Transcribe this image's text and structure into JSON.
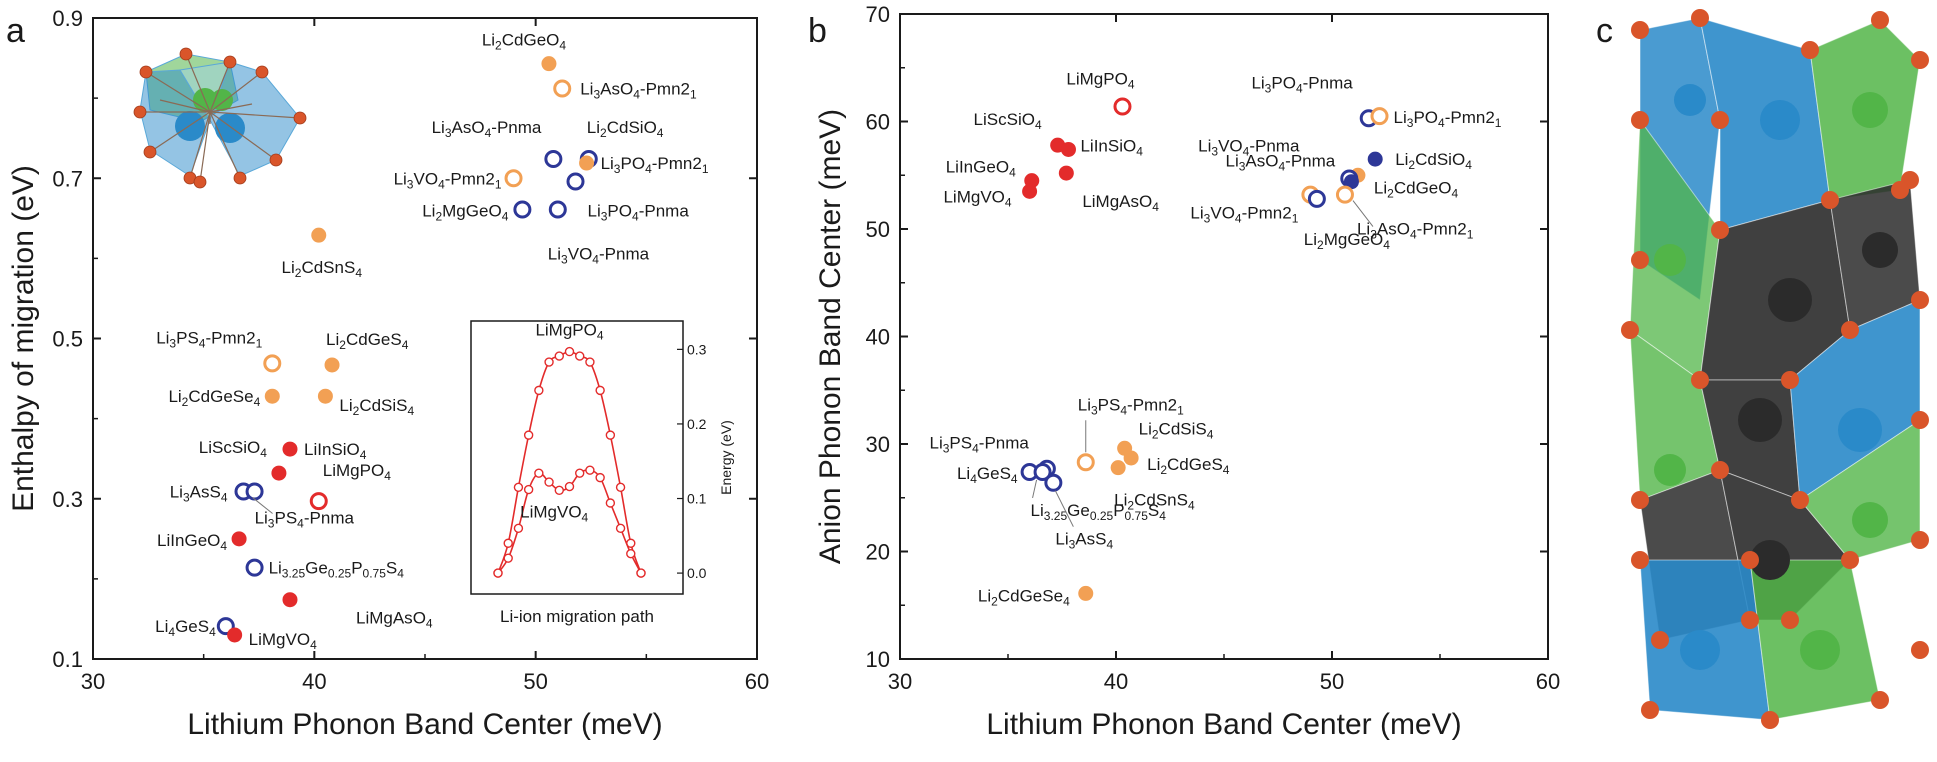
{
  "colors": {
    "orange": "#f2a054",
    "red": "#e32b2b",
    "blue": "#2d3797",
    "axis": "#1a1a1a",
    "leader": "#777777",
    "crystal_blue": "#2a8ac9",
    "crystal_green": "#52b548",
    "crystal_dark": "#2b2b2b",
    "crystal_atom": "#d9552a"
  },
  "panels": {
    "a": {
      "letter": "a"
    },
    "b": {
      "letter": "b"
    },
    "c": {
      "letter": "c"
    }
  },
  "chart_data": [
    {
      "id": "a",
      "type": "scatter",
      "xlabel": "Lithium Phonon Band Center (meV)",
      "ylabel": "Enthalpy of migration (eV)",
      "xlim": [
        30,
        60
      ],
      "ylim": [
        0.1,
        0.9
      ],
      "xticks": [
        30,
        40,
        50,
        60
      ],
      "yticks": [
        0.1,
        0.3,
        0.5,
        0.7,
        0.9
      ],
      "xtick_labels": [
        "30",
        "40",
        "50",
        "60"
      ],
      "ytick_labels": [
        "0.1",
        "0.3",
        "0.5",
        "0.7",
        "0.9"
      ],
      "points": [
        {
          "x": 50.6,
          "y": 0.843,
          "color": "orange",
          "filled": true,
          "label": "Li2CdGeO4"
        },
        {
          "x": 51.2,
          "y": 0.812,
          "color": "orange",
          "filled": false,
          "label": "Li3AsO4-Pmn21"
        },
        {
          "x": 50.8,
          "y": 0.724,
          "color": "blue",
          "filled": false,
          "label": "Li3AsO4-Pnma"
        },
        {
          "x": 52.4,
          "y": 0.724,
          "color": "blue",
          "filled": false,
          "label": "Li2CdSiO4"
        },
        {
          "x": 52.3,
          "y": 0.719,
          "color": "orange",
          "filled": true,
          "label": "Li3PO4-Pmn21"
        },
        {
          "x": 49.0,
          "y": 0.7,
          "color": "orange",
          "filled": false,
          "label": "Li3VO4-Pmn21"
        },
        {
          "x": 51.8,
          "y": 0.696,
          "color": "blue",
          "filled": false,
          "label": "Li3PO4-Pnma"
        },
        {
          "x": 49.4,
          "y": 0.661,
          "color": "blue",
          "filled": false,
          "label": "Li2MgGeO4"
        },
        {
          "x": 51.0,
          "y": 0.661,
          "color": "blue",
          "filled": false,
          "label": "Li3VO4-Pnma"
        },
        {
          "x": 40.2,
          "y": 0.629,
          "color": "orange",
          "filled": true,
          "label": "Li2CdSnS4"
        },
        {
          "x": 38.1,
          "y": 0.469,
          "color": "orange",
          "filled": false,
          "label": "Li3PS4-Pmn21"
        },
        {
          "x": 40.8,
          "y": 0.467,
          "color": "orange",
          "filled": true,
          "label": "Li2CdGeS4"
        },
        {
          "x": 38.1,
          "y": 0.428,
          "color": "orange",
          "filled": true,
          "label": "Li2CdGeSe4"
        },
        {
          "x": 40.5,
          "y": 0.428,
          "color": "orange",
          "filled": true,
          "label": "Li2CdSiS4"
        },
        {
          "x": 38.9,
          "y": 0.362,
          "color": "red",
          "filled": true,
          "label": "LiInSiO4"
        },
        {
          "x": 38.4,
          "y": 0.332,
          "color": "red",
          "filled": true,
          "label": "LiScSiO4"
        },
        {
          "x": 36.8,
          "y": 0.309,
          "color": "blue",
          "filled": false,
          "label": "Li3AsS4"
        },
        {
          "x": 37.3,
          "y": 0.309,
          "color": "blue",
          "filled": false,
          "label": "Li3PS4-Pnma"
        },
        {
          "x": 40.2,
          "y": 0.297,
          "color": "red",
          "filled": false,
          "label": "LiMgPO4"
        },
        {
          "x": 36.6,
          "y": 0.25,
          "color": "red",
          "filled": true,
          "label": "LiInGeO4"
        },
        {
          "x": 37.3,
          "y": 0.214,
          "color": "blue",
          "filled": false,
          "label": "Li3.25Ge0.25P0.75S4"
        },
        {
          "x": 38.9,
          "y": 0.174,
          "color": "red",
          "filled": true,
          "label": "LiMgAsO4"
        },
        {
          "x": 36.0,
          "y": 0.141,
          "color": "blue",
          "filled": false,
          "label": "Li4GeS4"
        },
        {
          "x": 36.4,
          "y": 0.13,
          "color": "red",
          "filled": true,
          "label": "LiMgVO4"
        }
      ],
      "inset": {
        "type": "line",
        "xlabel": "Li-ion migration path",
        "ylabel": "Energy (eV)",
        "ylim": [
          -0.02,
          0.33
        ],
        "yticks": [
          0.0,
          0.1,
          0.2,
          0.3
        ],
        "ytick_labels": [
          "0.0",
          "0.1",
          "0.2",
          "0.3"
        ],
        "x": [
          0,
          1,
          2,
          3,
          4,
          5,
          6,
          7,
          8,
          9,
          10,
          11,
          12,
          13,
          14
        ],
        "series": [
          {
            "name": "LiMgPO4",
            "color": "red",
            "values": [
              0.0,
              0.04,
              0.115,
              0.185,
              0.245,
              0.283,
              0.291,
              0.297,
              0.291,
              0.283,
              0.245,
              0.185,
              0.115,
              0.04,
              0.0
            ]
          },
          {
            "name": "LiMgVO4",
            "color": "red",
            "values": [
              0.0,
              0.02,
              0.06,
              0.112,
              0.134,
              0.122,
              0.111,
              0.116,
              0.134,
              0.138,
              0.128,
              0.094,
              0.06,
              0.026,
              0.0
            ]
          }
        ]
      }
    },
    {
      "id": "b",
      "type": "scatter",
      "xlabel": "Lithium Phonon Band Center (meV)",
      "ylabel": "Anion Phonon Band Center (meV)",
      "xlim": [
        30,
        60
      ],
      "ylim": [
        10,
        70
      ],
      "xticks": [
        30,
        40,
        50,
        60
      ],
      "yticks": [
        10,
        20,
        30,
        40,
        50,
        60,
        70
      ],
      "xtick_labels": [
        "30",
        "40",
        "50",
        "60"
      ],
      "ytick_labels": [
        "10",
        "20",
        "30",
        "40",
        "50",
        "60",
        "70"
      ],
      "points": [
        {
          "x": 40.3,
          "y": 61.4,
          "color": "red",
          "filled": false,
          "label": "LiMgPO4"
        },
        {
          "x": 51.7,
          "y": 60.3,
          "color": "blue",
          "filled": false,
          "label": "Li3PO4-Pnma"
        },
        {
          "x": 52.2,
          "y": 60.5,
          "color": "orange",
          "filled": false,
          "label": "Li3PO4-Pmn21"
        },
        {
          "x": 37.3,
          "y": 57.8,
          "color": "red",
          "filled": true,
          "label": "LiScSiO4"
        },
        {
          "x": 37.8,
          "y": 57.4,
          "color": "red",
          "filled": true,
          "label": "LiInSiO4"
        },
        {
          "x": 52.0,
          "y": 56.5,
          "color": "blue",
          "filled": true,
          "label": "Li2CdSiO4"
        },
        {
          "x": 37.7,
          "y": 55.2,
          "color": "red",
          "filled": true,
          "label": "LiMgAsO4"
        },
        {
          "x": 36.1,
          "y": 54.5,
          "color": "red",
          "filled": true,
          "label": "LiInGeO4"
        },
        {
          "x": 51.2,
          "y": 55.0,
          "color": "orange",
          "filled": true,
          "label": "Li2CdGeO4"
        },
        {
          "x": 50.8,
          "y": 54.7,
          "color": "blue",
          "filled": false,
          "label": "Li3AsO4-Pnma"
        },
        {
          "x": 50.9,
          "y": 54.4,
          "color": "blue",
          "filled": true,
          "label": "Li3VO4-Pnma"
        },
        {
          "x": 36.0,
          "y": 53.5,
          "color": "red",
          "filled": true,
          "label": "LiMgVO4"
        },
        {
          "x": 49.0,
          "y": 53.2,
          "color": "orange",
          "filled": false,
          "label": "Li3VO4-Pmn21"
        },
        {
          "x": 49.3,
          "y": 52.8,
          "color": "blue",
          "filled": false,
          "label": "Li2MgGeO4"
        },
        {
          "x": 50.6,
          "y": 53.2,
          "color": "orange",
          "filled": false,
          "label": "Li3AsO4-Pmn21"
        },
        {
          "x": 40.4,
          "y": 29.6,
          "color": "orange",
          "filled": true,
          "label": "Li2CdSiS4"
        },
        {
          "x": 40.7,
          "y": 28.7,
          "color": "orange",
          "filled": true,
          "label": "Li2CdGeS4"
        },
        {
          "x": 38.6,
          "y": 28.3,
          "color": "orange",
          "filled": false,
          "label": "Li3PS4-Pmn21"
        },
        {
          "x": 40.1,
          "y": 27.8,
          "color": "orange",
          "filled": true,
          "label": "Li2CdSnS4"
        },
        {
          "x": 36.8,
          "y": 27.7,
          "color": "blue",
          "filled": false,
          "label": "Li3PS4-Pnma"
        },
        {
          "x": 36.0,
          "y": 27.4,
          "color": "blue",
          "filled": false,
          "label": "Li4GeS4"
        },
        {
          "x": 36.6,
          "y": 27.4,
          "color": "blue",
          "filled": false,
          "label": "Li3.25Ge0.25P0.75S4"
        },
        {
          "x": 37.1,
          "y": 26.4,
          "color": "blue",
          "filled": false,
          "label": "Li3AsS4"
        },
        {
          "x": 38.6,
          "y": 16.1,
          "color": "orange",
          "filled": true,
          "label": "Li2CdGeSe4"
        }
      ]
    }
  ]
}
